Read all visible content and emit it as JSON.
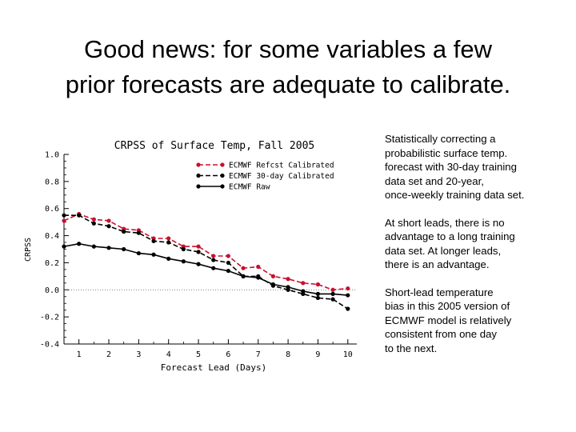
{
  "slide": {
    "title_line1": "Good news: for some variables a few",
    "title_line2": "prior forecasts are adequate to calibrate."
  },
  "notes": [
    "Statistically correcting a\nprobabilistic surface temp.\nforecast with 30-day training\ndata set and 20-year,\nonce-weekly training data set.",
    "At short leads, there is no\nadvantage to a long training\ndata set. At longer leads,\nthere is an advantage.",
    "Short-lead temperature\nbias in this 2005 version of\nECMWF model is relatively\nconsistent from one day\nto the next."
  ],
  "chart_data": {
    "type": "line",
    "title": "CRPSS of Surface Temp, Fall 2005",
    "xlabel": "Forecast Lead (Days)",
    "ylabel": "CRPSS",
    "xlim": [
      0.5,
      10.3
    ],
    "ylim": [
      -0.4,
      1.0
    ],
    "xticks": [
      1,
      2,
      3,
      4,
      5,
      6,
      7,
      8,
      9,
      10
    ],
    "yticks": [
      -0.4,
      -0.2,
      0.0,
      0.2,
      0.4,
      0.6,
      0.8,
      1.0
    ],
    "ytick_labels": [
      "-0.4",
      "-0.2",
      "0.0",
      "0.2",
      "0.4",
      "0.6",
      "0.8",
      "1.0"
    ],
    "zero_line": true,
    "grid": false,
    "legend_position": "top-center",
    "x": [
      0.5,
      1,
      1.5,
      2,
      2.5,
      3,
      3.5,
      4,
      4.5,
      5,
      5.5,
      6,
      6.5,
      7,
      7.5,
      8,
      8.5,
      9,
      9.5,
      10
    ],
    "series": [
      {
        "name": "ECMWF Refcst Calibrated",
        "color": "#c8102e",
        "dash": true,
        "values": [
          0.51,
          0.56,
          0.52,
          0.51,
          0.45,
          0.44,
          0.38,
          0.38,
          0.32,
          0.32,
          0.25,
          0.25,
          0.16,
          0.17,
          0.1,
          0.08,
          0.05,
          0.04,
          0.0,
          0.01
        ]
      },
      {
        "name": "ECMWF 30-day Calibrated",
        "color": "#000000",
        "dash": true,
        "values": [
          0.55,
          0.55,
          0.49,
          0.47,
          0.43,
          0.42,
          0.36,
          0.35,
          0.3,
          0.28,
          0.22,
          0.2,
          0.1,
          0.1,
          0.03,
          0.0,
          -0.03,
          -0.06,
          -0.07,
          -0.14
        ]
      },
      {
        "name": "ECMWF Raw",
        "color": "#000000",
        "dash": false,
        "values": [
          0.32,
          0.34,
          0.32,
          0.31,
          0.3,
          0.27,
          0.26,
          0.23,
          0.21,
          0.19,
          0.16,
          0.14,
          0.1,
          0.09,
          0.04,
          0.02,
          -0.01,
          -0.03,
          -0.03,
          -0.04
        ]
      }
    ]
  }
}
